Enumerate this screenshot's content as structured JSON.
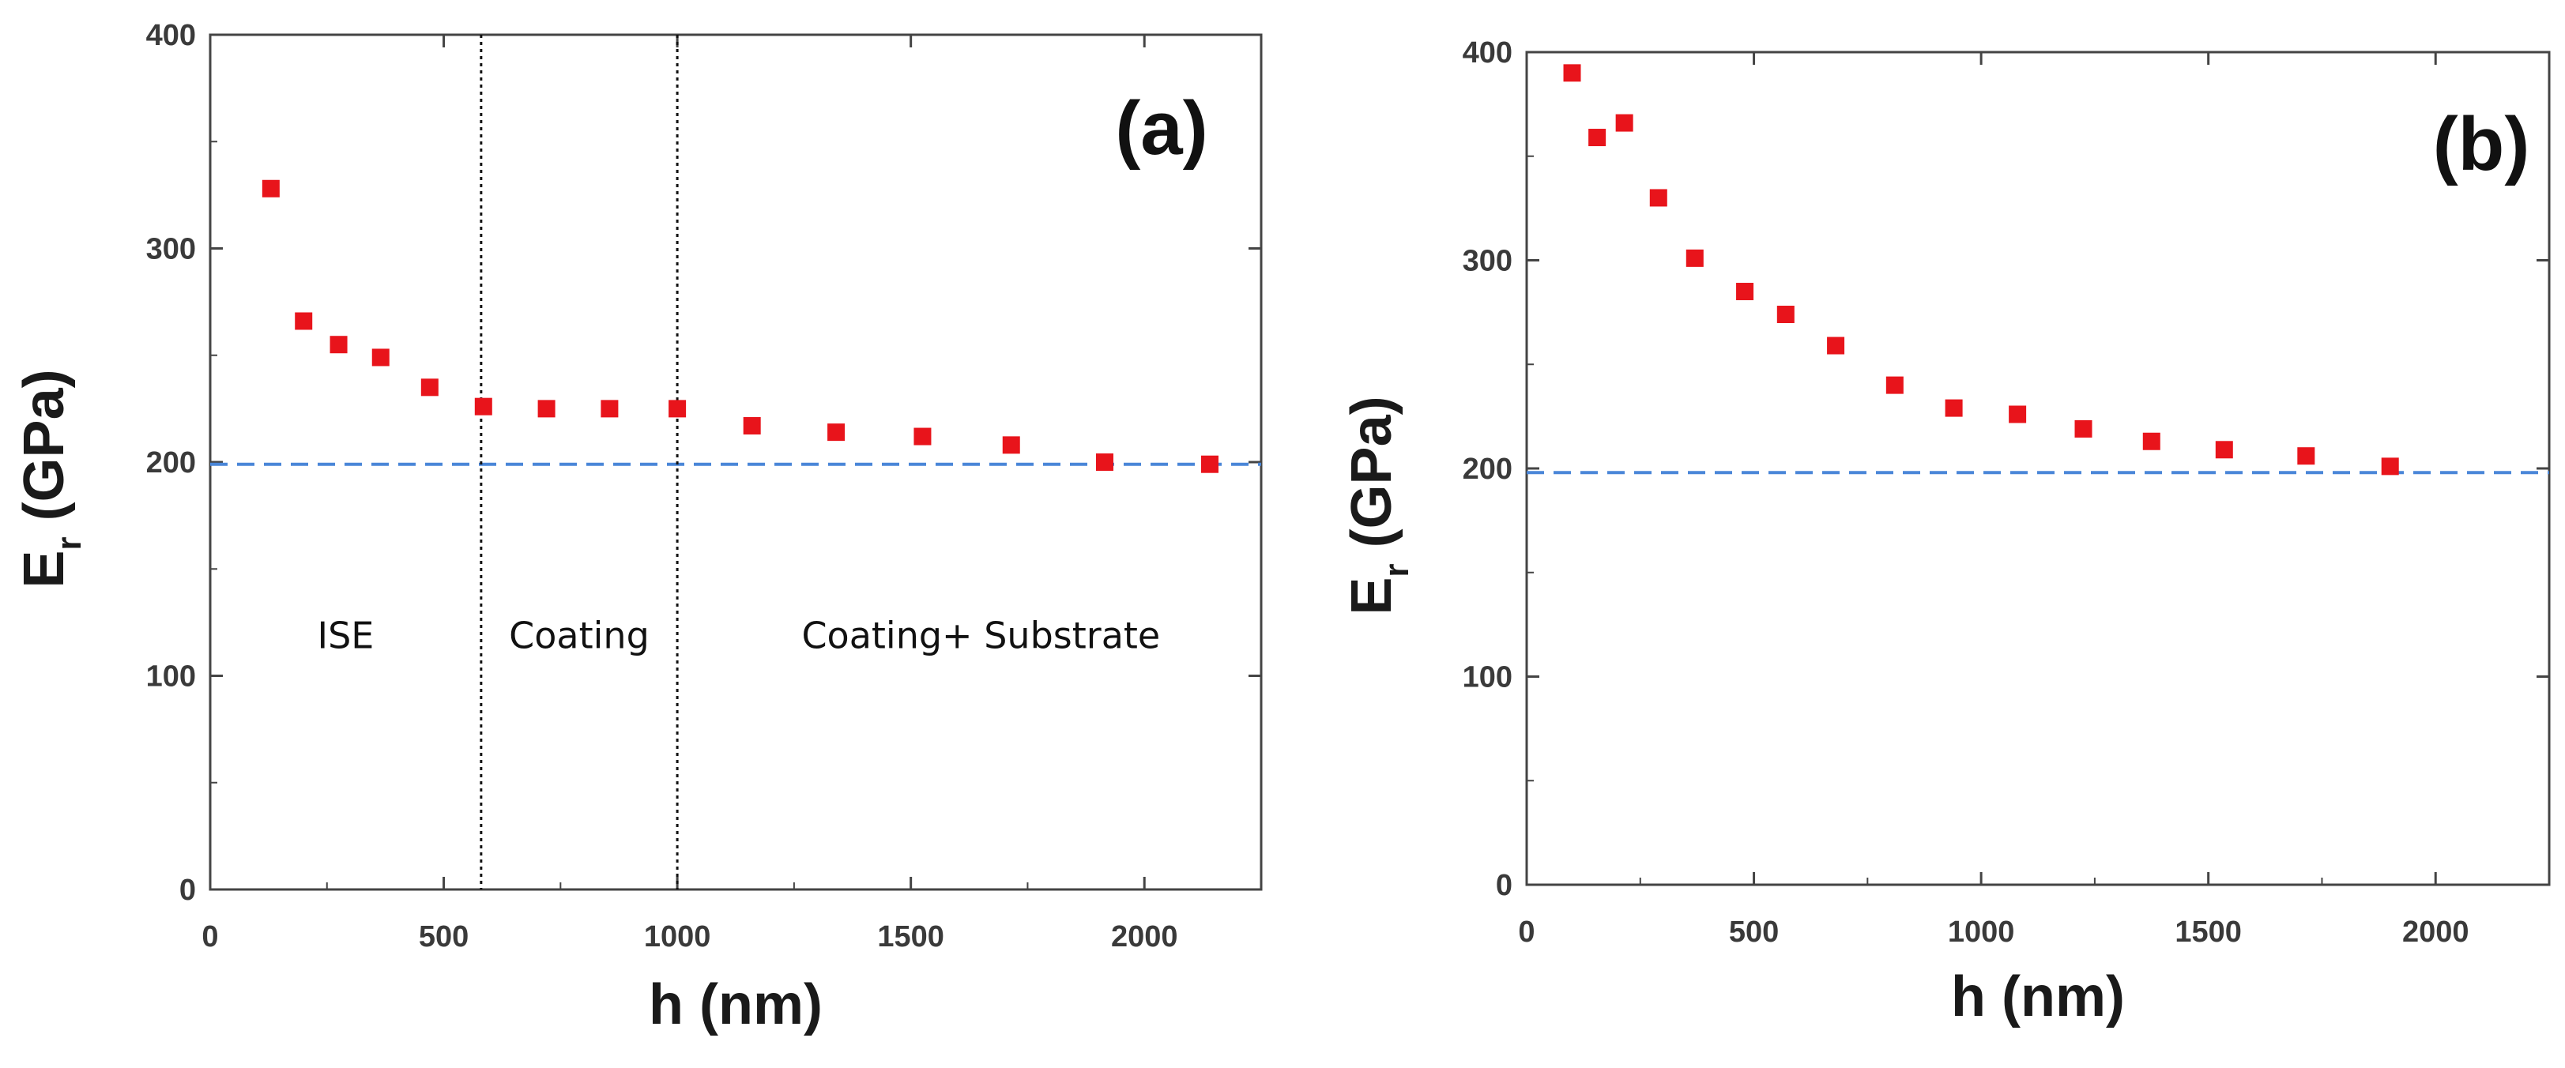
{
  "chart_data": [
    {
      "type": "scatter",
      "panel_label": "(a)",
      "xlabel": "h (nm)",
      "ylabel_main": "E",
      "ylabel_sub": "r",
      "ylabel_rest": " (GPa)",
      "xlim": [
        0,
        2250
      ],
      "ylim": [
        0,
        400
      ],
      "xticks": [
        0,
        500,
        1000,
        1500,
        2000
      ],
      "yticks": [
        0,
        100,
        200,
        300,
        400
      ],
      "reference_line": {
        "y": 199,
        "style": "dashed",
        "color": "#4a86d8"
      },
      "vertical_lines": [
        {
          "x": 580,
          "style": "dotted"
        },
        {
          "x": 1000,
          "style": "dotted"
        }
      ],
      "region_labels": [
        {
          "text": "ISE",
          "x": 290,
          "y": 113
        },
        {
          "text": "Coating",
          "x": 790,
          "y": 113
        },
        {
          "text": "Coating+ Substrate",
          "x": 1650,
          "y": 113
        }
      ],
      "marker_color": "#e8141b",
      "series": [
        {
          "name": "Er",
          "x": [
            130,
            200,
            275,
            365,
            470,
            585,
            720,
            855,
            1000,
            1160,
            1340,
            1525,
            1715,
            1915,
            2140
          ],
          "y": [
            328,
            266,
            255,
            249,
            235,
            226,
            225,
            225,
            225,
            217,
            214,
            212,
            208,
            200,
            199
          ]
        }
      ]
    },
    {
      "type": "scatter",
      "panel_label": "(b)",
      "xlabel": "h (nm)",
      "ylabel_main": "E",
      "ylabel_sub": "r",
      "ylabel_rest": " (GPa)",
      "xlim": [
        0,
        2250
      ],
      "ylim": [
        0,
        400
      ],
      "xticks": [
        0,
        500,
        1000,
        1500,
        2000
      ],
      "yticks": [
        0,
        100,
        200,
        300,
        400
      ],
      "reference_line": {
        "y": 198,
        "style": "dashed",
        "color": "#4a86d8"
      },
      "vertical_lines": [],
      "region_labels": [],
      "marker_color": "#e8141b",
      "series": [
        {
          "name": "Er",
          "x": [
            100,
            155,
            215,
            290,
            370,
            480,
            570,
            680,
            810,
            940,
            1080,
            1225,
            1375,
            1535,
            1715,
            1900
          ],
          "y": [
            390,
            359,
            366,
            330,
            301,
            285,
            274,
            259,
            240,
            229,
            226,
            219,
            213,
            209,
            206,
            201
          ]
        }
      ]
    }
  ]
}
